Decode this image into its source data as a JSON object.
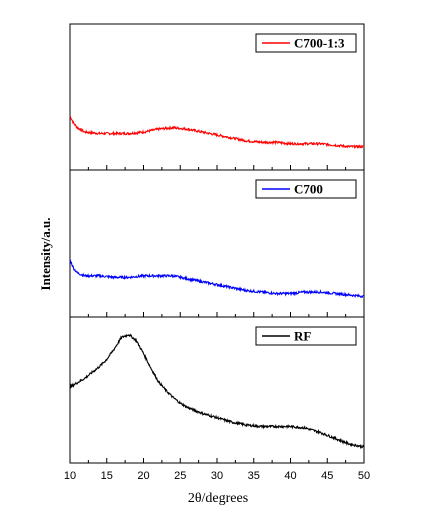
{
  "chart_data": {
    "type": "line",
    "layout": "stacked-panels",
    "xlabel": "2θ/degrees",
    "ylabel": "Intensity/a.u.",
    "xlim": [
      10,
      50
    ],
    "xticks": [
      10,
      15,
      20,
      25,
      30,
      35,
      40,
      45,
      50
    ],
    "legend_placement": "top-right",
    "grid": false,
    "panels": [
      {
        "series": [
          {
            "name": "C700-1:3",
            "color": "#ff0000",
            "ylim": [
              0,
              100
            ],
            "x": [
              10,
              10.5,
              11,
              12,
              14,
              16,
              18,
              20,
              22,
              24,
              26,
              28,
              30,
              32,
              34,
              36,
              38,
              40,
              42,
              44,
              46,
              48,
              50
            ],
            "y": [
              37,
              32,
              29,
              26,
              25,
              25,
              25,
              26,
              28,
              29,
              28,
              26,
              24,
              22,
              20,
              19,
              19,
              18,
              18,
              18,
              17,
              16,
              16
            ]
          }
        ]
      },
      {
        "series": [
          {
            "name": "C700",
            "color": "#0000ff",
            "ylim": [
              0,
              100
            ],
            "x": [
              10,
              10.5,
              11,
              12,
              14,
              16,
              18,
              20,
              22,
              24,
              26,
              28,
              30,
              32,
              34,
              36,
              38,
              40,
              42,
              44,
              46,
              48,
              50
            ],
            "y": [
              39,
              33,
              30,
              28,
              28,
              27,
              27,
              28,
              28,
              28,
              26,
              24,
              22,
              20,
              18,
              17,
              16,
              16,
              17,
              17,
              16,
              15,
              14
            ]
          }
        ]
      },
      {
        "series": [
          {
            "name": "RF",
            "color": "#000000",
            "ylim": [
              0,
              100
            ],
            "x": [
              10,
              11,
              12,
              13,
              14,
              15,
              16,
              17,
              18,
              19,
              20,
              21,
              22,
              23,
              24,
              25,
              26,
              28,
              30,
              32,
              34,
              36,
              38,
              40,
              42,
              44,
              46,
              48,
              50
            ],
            "y": [
              52,
              55,
              58,
              62,
              66,
              71,
              78,
              86,
              88,
              84,
              75,
              65,
              56,
              50,
              45,
              41,
              38,
              34,
              31,
              28,
              26,
              25,
              25,
              25,
              24,
              21,
              17,
              13,
              11
            ]
          }
        ]
      }
    ]
  }
}
